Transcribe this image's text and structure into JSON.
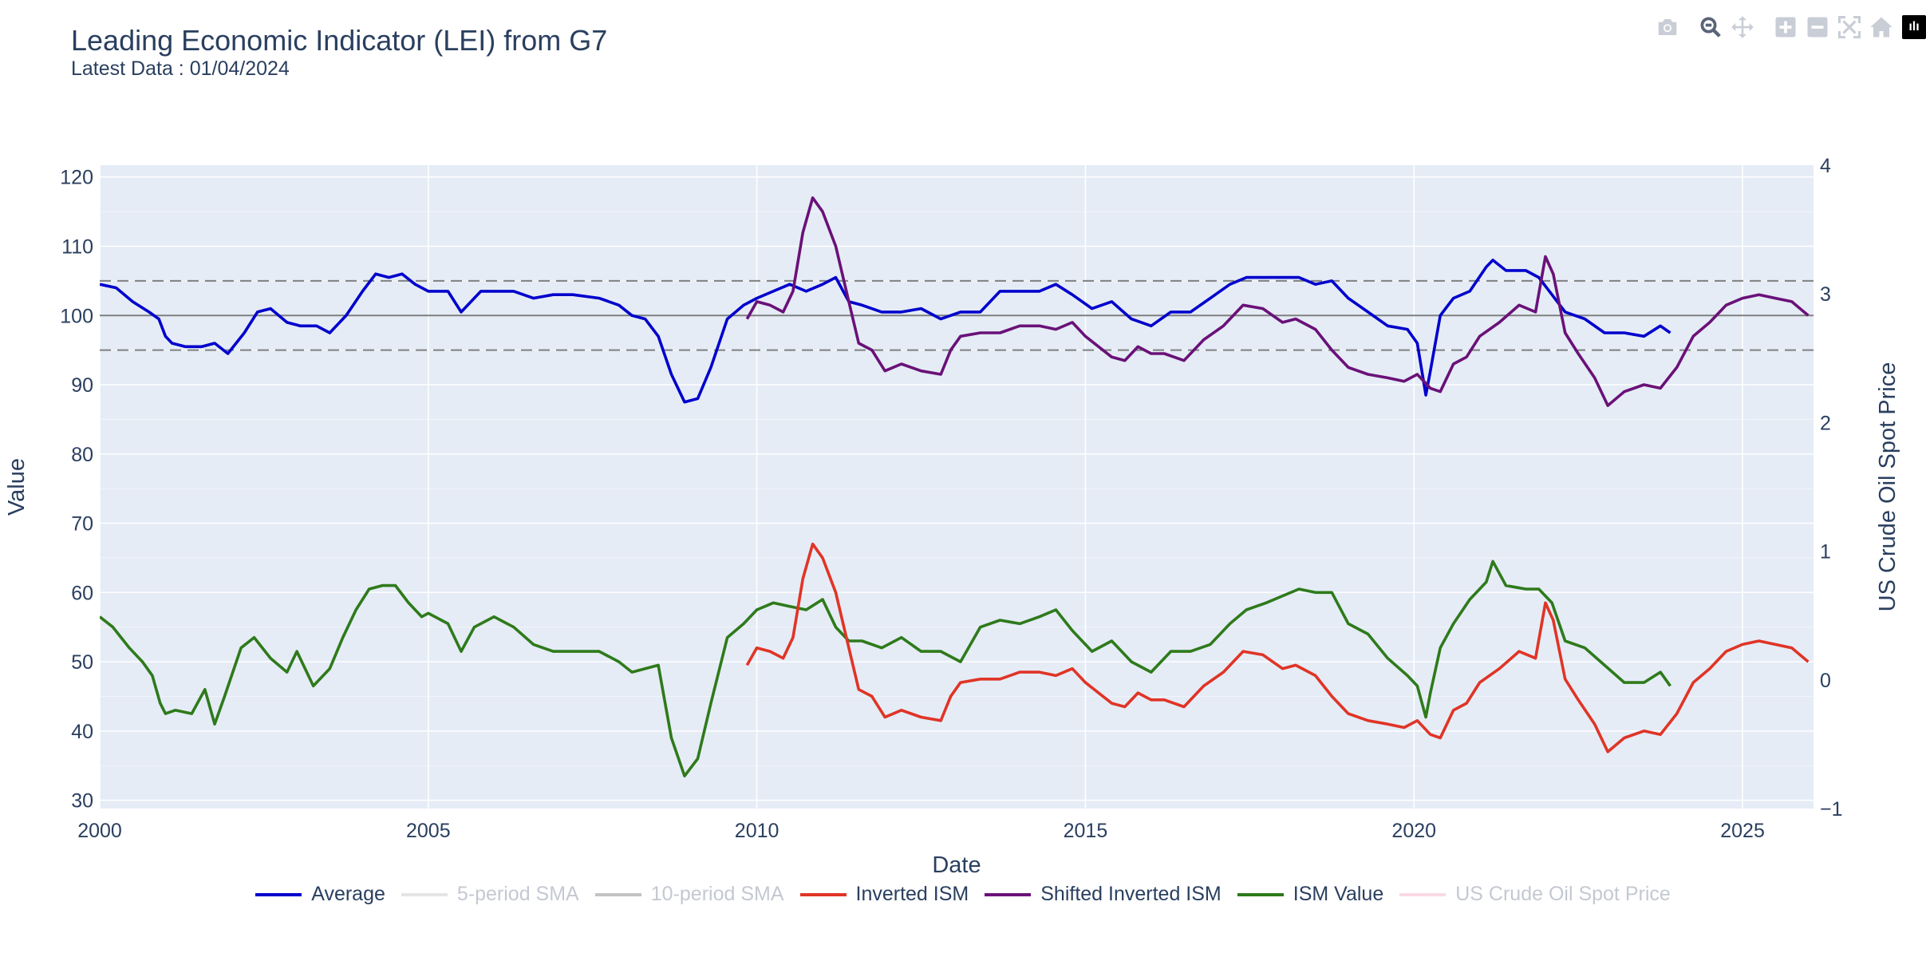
{
  "title": "Leading Economic Indicator (LEI) from G7",
  "subtitle": "Latest Data : 01/04/2024",
  "modebar": {
    "icons": [
      "camera-icon",
      "zoom-icon",
      "pan-icon",
      "zoom-in-icon",
      "zoom-out-icon",
      "autoscale-icon",
      "reset-axes-icon"
    ],
    "logo_text": "ılı"
  },
  "colors": {
    "plot_bg": "#E5ECF6",
    "grid": "#ffffff",
    "average": "#0000CC",
    "inverted_ism": "#E03426",
    "shifted_inverted_ism": "#6A1178",
    "ism_value": "#2E7A1B",
    "sma": "#CCCCCC",
    "oil": "#F7B6C8",
    "ref_line": "#808080"
  },
  "chart_data": {
    "type": "line",
    "xlabel": "Date",
    "ylabel": "Value",
    "y2label": "US Crude Oil Spot Price",
    "xlim": [
      2000.0,
      2026.08
    ],
    "ylim": [
      28.8,
      121.7
    ],
    "y2lim": [
      -1,
      4
    ],
    "x_ticks": [
      "2000",
      "2005",
      "2010",
      "2015",
      "2020",
      "2025"
    ],
    "y_ticks": [
      "30",
      "40",
      "50",
      "60",
      "70",
      "80",
      "90",
      "100",
      "110",
      "120"
    ],
    "y2_ticks": [
      "−1",
      "0",
      "1",
      "2",
      "3",
      "4"
    ],
    "reference_lines": [
      {
        "y": 100,
        "style": "solid"
      },
      {
        "y": 105,
        "style": "dashed"
      },
      {
        "y": 95,
        "style": "dashed"
      }
    ],
    "legend_position": "bottom-center",
    "legend": [
      {
        "name": "Average",
        "color": "#0000CC",
        "visible": true
      },
      {
        "name": "5-period SMA",
        "color": "#CCCCCC",
        "visible": false
      },
      {
        "name": "10-period SMA",
        "color": "#888888",
        "visible": false
      },
      {
        "name": "Inverted ISM",
        "color": "#E03426",
        "visible": true
      },
      {
        "name": "Shifted Inverted ISM",
        "color": "#6A1178",
        "visible": true
      },
      {
        "name": "ISM Value",
        "color": "#2E7A1B",
        "visible": true
      },
      {
        "name": "US Crude Oil Spot Price",
        "color": "#F7B6C8",
        "visible": false
      }
    ],
    "series": [
      {
        "name": "Average",
        "color": "#0000CC",
        "x": [
          2000.0,
          2000.25,
          2000.5,
          2000.75,
          2000.9,
          2001.0,
          2001.1,
          2001.3,
          2001.55,
          2001.75,
          2001.95,
          2002.2,
          2002.4,
          2002.6,
          2002.85,
          2003.05,
          2003.3,
          2003.5,
          2003.75,
          2004.0,
          2004.2,
          2004.4,
          2004.6,
          2004.8,
          2005.0,
          2005.3,
          2005.5,
          2005.8,
          2006.0,
          2006.3,
          2006.6,
          2006.9,
          2007.2,
          2007.6,
          2007.9,
          2008.1,
          2008.3,
          2008.5,
          2008.7,
          2008.9,
          2009.1,
          2009.3,
          2009.55,
          2009.8,
          2010.0,
          2010.25,
          2010.5,
          2010.75,
          2011.0,
          2011.2,
          2011.4,
          2011.6,
          2011.9,
          2012.2,
          2012.5,
          2012.8,
          2013.1,
          2013.4,
          2013.7,
          2014.0,
          2014.3,
          2014.55,
          2014.8,
          2015.1,
          2015.4,
          2015.7,
          2016.0,
          2016.3,
          2016.6,
          2016.9,
          2017.2,
          2017.45,
          2017.75,
          2018.0,
          2018.25,
          2018.5,
          2018.75,
          2019.0,
          2019.3,
          2019.6,
          2019.9,
          2020.05,
          2020.18,
          2020.25,
          2020.4,
          2020.6,
          2020.85,
          2021.1,
          2021.2,
          2021.4,
          2021.7,
          2021.9,
          2022.1,
          2022.3,
          2022.6,
          2022.9,
          2023.2,
          2023.5,
          2023.75,
          2023.9
        ],
        "y": [
          104.5,
          104,
          102,
          100.5,
          99.5,
          97,
          96,
          95.5,
          95.5,
          96,
          94.5,
          97.5,
          100.5,
          101,
          99,
          98.5,
          98.5,
          97.5,
          100,
          103.5,
          106,
          105.5,
          106,
          104.5,
          103.5,
          103.5,
          100.5,
          103.5,
          103.5,
          103.5,
          102.5,
          103,
          103,
          102.5,
          101.5,
          100,
          99.5,
          97,
          91.5,
          87.5,
          88,
          92.5,
          99.5,
          101.5,
          102.5,
          103.5,
          104.5,
          103.5,
          104.5,
          105.5,
          102,
          101.5,
          100.5,
          100.5,
          101,
          99.5,
          100.5,
          100.5,
          103.5,
          103.5,
          103.5,
          104.5,
          103,
          101,
          102,
          99.5,
          98.5,
          100.5,
          100.5,
          102.5,
          104.5,
          105.5,
          105.5,
          105.5,
          105.5,
          104.5,
          105,
          102.5,
          100.5,
          98.5,
          98,
          96,
          88.5,
          92,
          100,
          102.5,
          103.5,
          107,
          108,
          106.5,
          106.5,
          105.5,
          103,
          100.5,
          99.5,
          97.5,
          97.5,
          97,
          98.5,
          97.5
        ]
      },
      {
        "name": "Shifted Inverted ISM",
        "color": "#6A1178",
        "x": [
          2009.85,
          2010.0,
          2010.2,
          2010.4,
          2010.55,
          2010.7,
          2010.85,
          2011.0,
          2011.2,
          2011.4,
          2011.55,
          2011.75,
          2011.95,
          2012.2,
          2012.5,
          2012.8,
          2012.95,
          2013.1,
          2013.4,
          2013.7,
          2014.0,
          2014.3,
          2014.55,
          2014.8,
          2015.0,
          2015.2,
          2015.4,
          2015.6,
          2015.8,
          2016.0,
          2016.2,
          2016.5,
          2016.8,
          2017.1,
          2017.4,
          2017.7,
          2018.0,
          2018.2,
          2018.5,
          2018.75,
          2019.0,
          2019.3,
          2019.6,
          2019.85,
          2020.05,
          2020.25,
          2020.4,
          2020.6,
          2020.8,
          2021.0,
          2021.3,
          2021.6,
          2021.85,
          2022.0,
          2022.12,
          2022.3,
          2022.5,
          2022.75,
          2022.95,
          2023.2,
          2023.5,
          2023.75,
          2024.0,
          2024.25,
          2024.5,
          2024.75,
          2025.0,
          2025.25,
          2025.5,
          2025.75,
          2026.0
        ],
        "y": [
          99.5,
          102,
          101.5,
          100.5,
          103.5,
          112,
          117,
          115,
          110,
          102,
          96,
          95,
          92,
          93,
          92,
          91.5,
          95,
          97,
          97.5,
          97.5,
          98.5,
          98.5,
          98,
          99,
          97,
          95.5,
          94,
          93.5,
          95.5,
          94.5,
          94.5,
          93.5,
          96.5,
          98.5,
          101.5,
          101,
          99,
          99.5,
          98,
          95,
          92.5,
          91.5,
          91,
          90.5,
          91.5,
          89.5,
          89,
          93,
          94,
          97,
          99,
          101.5,
          100.5,
          108.5,
          106,
          97.5,
          94.5,
          91,
          87,
          89,
          90,
          89.5,
          92.5,
          97,
          99,
          101.5,
          102.5,
          103,
          102.5,
          102,
          100
        ]
      },
      {
        "name": "ISM Value",
        "color": "#2E7A1B",
        "x": [
          2000.0,
          2000.2,
          2000.45,
          2000.65,
          2000.8,
          2000.92,
          2001.0,
          2001.15,
          2001.4,
          2001.6,
          2001.75,
          2001.9,
          2002.15,
          2002.35,
          2002.6,
          2002.85,
          2003.0,
          2003.25,
          2003.5,
          2003.7,
          2003.9,
          2004.1,
          2004.3,
          2004.5,
          2004.7,
          2004.9,
          2005.0,
          2005.3,
          2005.5,
          2005.7,
          2006.0,
          2006.3,
          2006.6,
          2006.9,
          2007.2,
          2007.6,
          2007.9,
          2008.1,
          2008.3,
          2008.5,
          2008.7,
          2008.9,
          2009.1,
          2009.3,
          2009.55,
          2009.8,
          2010.0,
          2010.25,
          2010.5,
          2010.75,
          2011.0,
          2011.2,
          2011.4,
          2011.6,
          2011.9,
          2012.2,
          2012.5,
          2012.8,
          2013.1,
          2013.4,
          2013.7,
          2014.0,
          2014.3,
          2014.55,
          2014.8,
          2015.1,
          2015.4,
          2015.7,
          2016.0,
          2016.3,
          2016.6,
          2016.9,
          2017.2,
          2017.45,
          2017.75,
          2018.0,
          2018.25,
          2018.5,
          2018.75,
          2019.0,
          2019.3,
          2019.6,
          2019.9,
          2020.05,
          2020.18,
          2020.25,
          2020.4,
          2020.6,
          2020.85,
          2021.1,
          2021.2,
          2021.4,
          2021.7,
          2021.9,
          2022.1,
          2022.3,
          2022.6,
          2022.9,
          2023.2,
          2023.5,
          2023.75,
          2023.9
        ],
        "y": [
          56.5,
          55,
          52,
          50,
          48,
          44,
          42.5,
          43,
          42.5,
          46,
          41,
          45,
          52,
          53.5,
          50.5,
          48.5,
          51.5,
          46.5,
          49,
          53.5,
          57.5,
          60.5,
          61,
          61,
          58.5,
          56.5,
          57,
          55.5,
          51.5,
          55,
          56.5,
          55,
          52.5,
          51.5,
          51.5,
          51.5,
          50,
          48.5,
          49,
          49.5,
          39,
          33.5,
          36,
          44,
          53.5,
          55.5,
          57.5,
          58.5,
          58,
          57.5,
          59,
          55,
          53,
          53,
          52,
          53.5,
          51.5,
          51.5,
          50,
          55,
          56,
          55.5,
          56.5,
          57.5,
          54.5,
          51.5,
          53,
          50,
          48.5,
          51.5,
          51.5,
          52.5,
          55.5,
          57.5,
          58.5,
          59.5,
          60.5,
          60,
          60,
          55.5,
          54,
          50.5,
          48,
          46.5,
          42,
          45.5,
          52,
          55.5,
          59,
          61.5,
          64.5,
          61,
          60.5,
          60.5,
          58.5,
          53,
          52,
          49.5,
          47,
          47,
          48.5,
          46.5
        ]
      },
      {
        "name": "Inverted ISM",
        "color": "#E03426",
        "x": [
          2009.85,
          2010.0,
          2010.2,
          2010.4,
          2010.55,
          2010.7,
          2010.85,
          2011.0,
          2011.2,
          2011.4,
          2011.55,
          2011.75,
          2011.95,
          2012.2,
          2012.5,
          2012.8,
          2012.95,
          2013.1,
          2013.4,
          2013.7,
          2014.0,
          2014.3,
          2014.55,
          2014.8,
          2015.0,
          2015.2,
          2015.4,
          2015.6,
          2015.8,
          2016.0,
          2016.2,
          2016.5,
          2016.8,
          2017.1,
          2017.4,
          2017.7,
          2018.0,
          2018.2,
          2018.5,
          2018.75,
          2019.0,
          2019.3,
          2019.6,
          2019.85,
          2020.05,
          2020.25,
          2020.4,
          2020.6,
          2020.8,
          2021.0,
          2021.3,
          2021.6,
          2021.85,
          2022.0,
          2022.12,
          2022.3,
          2022.5,
          2022.75,
          2022.95,
          2023.2,
          2023.5,
          2023.75,
          2024.0,
          2024.25,
          2024.5,
          2024.75,
          2025.0,
          2025.25,
          2025.5,
          2025.75,
          2026.0
        ],
        "y": [
          49.5,
          52,
          51.5,
          50.5,
          53.5,
          62,
          67,
          65,
          60,
          52,
          46,
          45,
          42,
          43,
          42,
          41.5,
          45,
          47,
          47.5,
          47.5,
          48.5,
          48.5,
          48,
          49,
          47,
          45.5,
          44,
          43.5,
          45.5,
          44.5,
          44.5,
          43.5,
          46.5,
          48.5,
          51.5,
          51,
          49,
          49.5,
          48,
          45,
          42.5,
          41.5,
          41,
          40.5,
          41.5,
          39.5,
          39,
          43,
          44,
          47,
          49,
          51.5,
          50.5,
          58.5,
          56,
          47.5,
          44.5,
          41,
          37,
          39,
          40,
          39.5,
          42.5,
          47,
          49,
          51.5,
          52.5,
          53,
          52.5,
          52,
          50
        ]
      }
    ]
  }
}
